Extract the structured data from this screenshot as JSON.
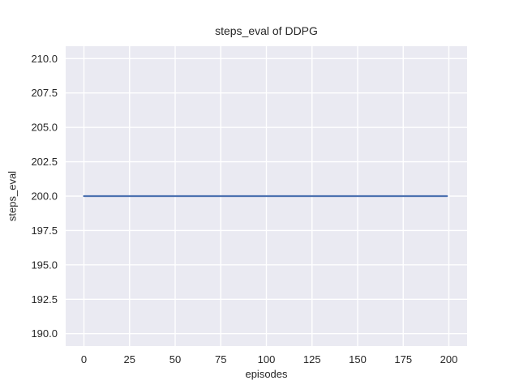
{
  "figure": {
    "title": "steps_eval of DDPG",
    "xlabel": "episodes",
    "ylabel": "steps_eval"
  },
  "colors": {
    "figure_background": "#ffffff",
    "plot_background": "#eaeaf2",
    "grid": "#ffffff",
    "line": "#4c72b0",
    "text": "#262626"
  },
  "chart_data": {
    "type": "line",
    "title": "steps_eval of DDPG",
    "xlabel": "episodes",
    "ylabel": "steps_eval",
    "series": [
      {
        "name": "steps_eval",
        "color": "#4c72b0",
        "x": [
          0,
          199
        ],
        "y": [
          200,
          200
        ]
      }
    ],
    "x_tick_values": [
      0,
      25,
      50,
      75,
      100,
      125,
      150,
      175,
      200
    ],
    "x_tick_labels": [
      "0",
      "25",
      "50",
      "75",
      "100",
      "125",
      "150",
      "175",
      "200"
    ],
    "y_tick_values": [
      190,
      192.5,
      195,
      197.5,
      200,
      202.5,
      205,
      207.5,
      210
    ],
    "y_tick_labels": [
      "190.0",
      "192.5",
      "195.0",
      "197.5",
      "200.0",
      "202.5",
      "205.0",
      "207.5",
      "210.0"
    ],
    "xlim": [
      -10,
      210
    ],
    "ylim": [
      189.1,
      210.9
    ],
    "grid": true,
    "legend": false
  }
}
